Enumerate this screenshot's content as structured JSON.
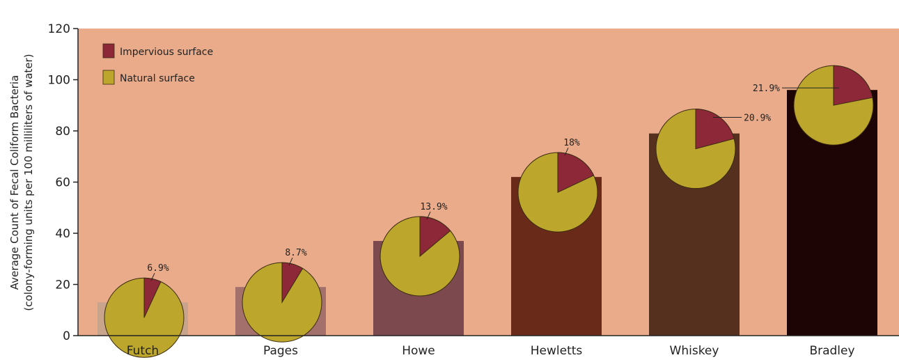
{
  "chart_data": {
    "type": "bar",
    "categories": [
      "Futch",
      "Pages",
      "Howe",
      "Hewletts",
      "Whiskey",
      "Bradley"
    ],
    "values": [
      13,
      19,
      37,
      62,
      79,
      96
    ],
    "ylim": [
      0,
      120
    ],
    "yticks": [
      0,
      20,
      40,
      60,
      80,
      100,
      120
    ],
    "ylabel_line1": "Average Count of Fecal Coliform Bacteria",
    "ylabel_line2": "(colony-forming units per 100 milliliters of water)",
    "xlabel": "",
    "title": "",
    "grid": false,
    "legend_position": "top-left",
    "bar_colors": [
      "#c9a48d",
      "#a4706c",
      "#7c4a4e",
      "#6a2a1a",
      "#55301e",
      "#1d0506"
    ],
    "pies": [
      {
        "impervious_pct": 6.9,
        "label": "6.9%"
      },
      {
        "impervious_pct": 8.7,
        "label": "8.7%"
      },
      {
        "impervious_pct": 13.9,
        "label": "13.9%"
      },
      {
        "impervious_pct": 18,
        "label": "18%"
      },
      {
        "impervious_pct": 20.9,
        "label": "20.9%"
      },
      {
        "impervious_pct": 21.9,
        "label": "21.9%"
      }
    ],
    "legend": [
      {
        "label": "Impervious surface",
        "color": "#8c2838"
      },
      {
        "label": "Natural surface",
        "color": "#bca72c"
      }
    ],
    "plot_background": "#e9ab8a"
  }
}
